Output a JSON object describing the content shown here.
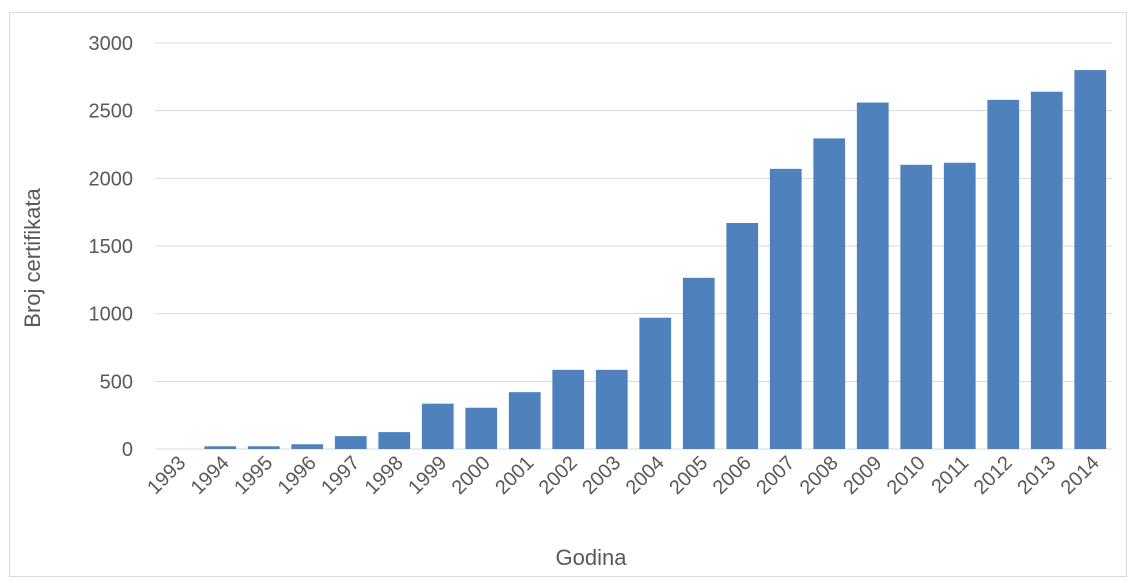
{
  "chart_data": {
    "type": "bar",
    "xlabel": "Godina",
    "ylabel": "Broj certifikata",
    "ylim": [
      0,
      3000
    ],
    "yticks": [
      0,
      500,
      1000,
      1500,
      2000,
      2500,
      3000
    ],
    "grid": true,
    "legend": "none",
    "bar_color": "#4f81bd",
    "categories": [
      "1993",
      "1994",
      "1995",
      "1996",
      "1997",
      "1998",
      "1999",
      "2000",
      "2001",
      "2002",
      "2003",
      "2004",
      "2005",
      "2006",
      "2007",
      "2008",
      "2009",
      "2010",
      "2011",
      "2012",
      "2013",
      "2014"
    ],
    "values": [
      0,
      20,
      20,
      35,
      95,
      125,
      335,
      305,
      420,
      585,
      585,
      970,
      1265,
      1670,
      2070,
      2295,
      2560,
      2100,
      2115,
      2580,
      2640,
      2800
    ]
  }
}
